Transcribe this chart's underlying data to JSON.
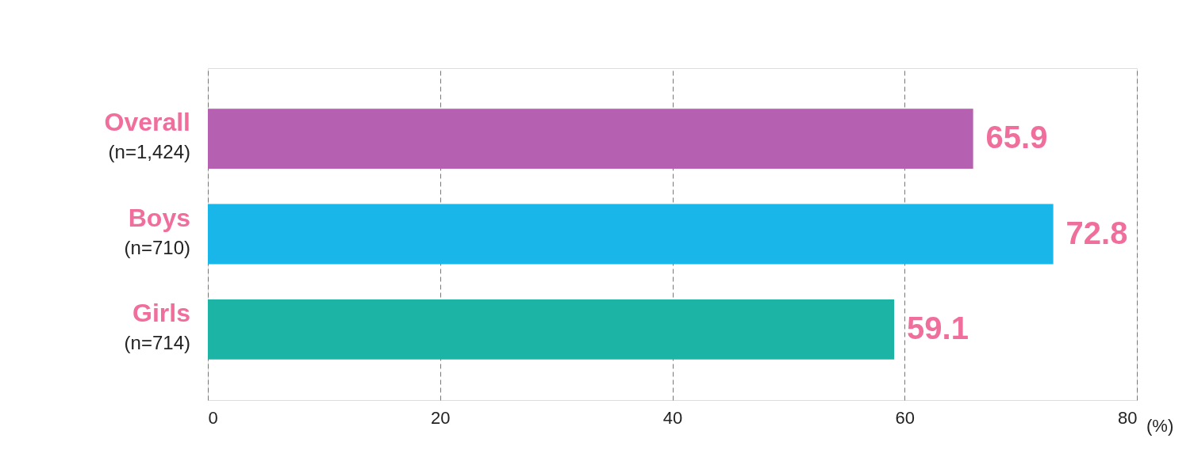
{
  "chart_data": {
    "type": "bar",
    "orientation": "horizontal",
    "categories": [
      "Overall\n(n=1,424)",
      "Boys\n(n=710)",
      "Girls\n(n=714)"
    ],
    "values": [
      65.9,
      72.8,
      59.1
    ],
    "colors": [
      "#b660b2",
      "#19b6ea",
      "#1cb5a5"
    ],
    "xlim": [
      0,
      80
    ],
    "xticks": [
      0,
      20,
      40,
      60,
      80
    ],
    "xlabel": "(%)",
    "grid": "x",
    "data_labels": true
  }
}
